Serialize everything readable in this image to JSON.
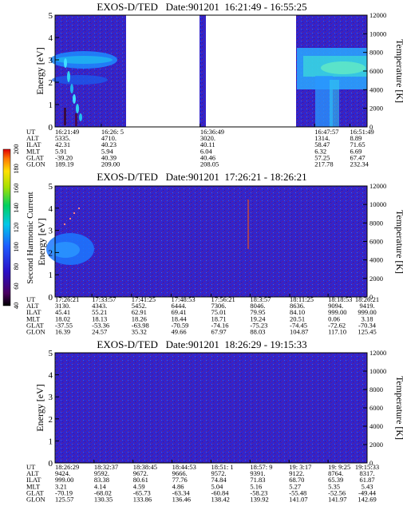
{
  "chart_data": [
    {
      "type": "heatmap",
      "title": "EXOS-D/TED   Date:901201  16:21:49 - 16:55:25",
      "ylabel": "Energy [eV]",
      "ylabel_right": "Temperature [K]",
      "ylim": [
        0,
        5
      ],
      "ylim_right": [
        0,
        12000
      ],
      "yticks": [
        "0",
        "1",
        "2",
        "3",
        "4",
        "5"
      ],
      "yticks_right": [
        "0",
        "2000",
        "4000",
        "6000",
        "8000",
        "10000",
        "12000"
      ],
      "data_gaps": [
        [
          0.228,
          0.465
        ],
        [
          0.505,
          0.832
        ]
      ],
      "row_labels": [
        "UT",
        "ALT",
        "ILAT",
        "MLT",
        "GLAT",
        "GLON"
      ],
      "columns": [
        {
          "x": 0.0,
          "values": [
            "16:21:49",
            "5335.",
            "42.31",
            "5.91",
            "-39.20",
            "189.19"
          ]
        },
        {
          "x": 0.148,
          "values": [
            "16:26: 5",
            "4710.",
            "40.23",
            "5.94",
            "40.39",
            "209.00"
          ]
        },
        {
          "x": 0.465,
          "values": [
            "16:36:49",
            "3020.",
            "40.11",
            "6.04",
            "40.46",
            "208.05"
          ]
        },
        {
          "x": 0.832,
          "values": [
            "16:47:57",
            "1314.",
            "58.47",
            "6.32",
            "57.25",
            "217.78"
          ]
        },
        {
          "x": 0.945,
          "values": [
            "16:51:49",
            "8.89",
            "71.65",
            "6.69",
            "67.47",
            "232.34"
          ]
        }
      ]
    },
    {
      "type": "heatmap",
      "title": "EXOS-D/TED   Date:901201  17:26:21 - 18:26:21",
      "ylabel": "Energy [eV]",
      "ylabel_right": "Temperature [K]",
      "ylim": [
        0,
        5
      ],
      "ylim_right": [
        0,
        12000
      ],
      "yticks": [
        "0",
        "1",
        "2",
        "3",
        "4",
        "5"
      ],
      "yticks_right": [
        "0",
        "2000",
        "4000",
        "6000",
        "8000",
        "10000",
        "12000"
      ],
      "colorbar": {
        "label": "Second Harmonic Current",
        "range": [
          40,
          200
        ],
        "ticks": [
          "40",
          "60",
          "80",
          "100",
          "120",
          "140",
          "160",
          "180",
          "200"
        ]
      },
      "row_labels": [
        "UT",
        "ALT",
        "ILAT",
        "MLT",
        "GLAT",
        "GLON"
      ],
      "columns": [
        {
          "x": 0.0,
          "values": [
            "17:26:21",
            "3130.",
            "45.41",
            "18.02",
            "-37.55",
            "16.39"
          ]
        },
        {
          "x": 0.118,
          "values": [
            "17:33:57",
            "4343.",
            "55.21",
            "18.13",
            "-53.36",
            "24.57"
          ]
        },
        {
          "x": 0.245,
          "values": [
            "17:41:25",
            "5452.",
            "62.91",
            "18.26",
            "-63.98",
            "35.32"
          ]
        },
        {
          "x": 0.372,
          "values": [
            "17:48:53",
            "6444.",
            "69.41",
            "18.44",
            "-70.59",
            "49.66"
          ]
        },
        {
          "x": 0.5,
          "values": [
            "17:56:21",
            "7306.",
            "75.01",
            "18.71",
            "-74.16",
            "67.97"
          ]
        },
        {
          "x": 0.625,
          "values": [
            "18:3:57",
            "8046.",
            "79.95",
            "19.24",
            "-75.23",
            "88.03"
          ]
        },
        {
          "x": 0.752,
          "values": [
            "18:11:25",
            "8636.",
            "84.10",
            "20.51",
            "-74.45",
            "104.87"
          ]
        },
        {
          "x": 0.875,
          "values": [
            "18:18:53",
            "9094.",
            "999.00",
            "0.06",
            "-72.62",
            "117.10"
          ]
        },
        {
          "x": 1.0,
          "values": [
            "18:26:21",
            "9419.",
            "999.00",
            "3.18",
            "-70.34",
            "125.45"
          ]
        }
      ]
    },
    {
      "type": "heatmap",
      "title": "EXOS-D/TED   Date:901201  18:26:29 - 19:15:33",
      "ylabel": "Energy [eV]",
      "ylabel_right": "Temperature [K]",
      "ylim": [
        0,
        5
      ],
      "ylim_right": [
        0,
        12000
      ],
      "yticks": [
        "0",
        "1",
        "2",
        "3",
        "4",
        "5"
      ],
      "yticks_right": [
        "0",
        "2000",
        "4000",
        "6000",
        "8000",
        "10000",
        "12000"
      ],
      "row_labels": [
        "UT",
        "ALT",
        "ILAT",
        "MLT",
        "GLAT",
        "GLON"
      ],
      "columns": [
        {
          "x": 0.0,
          "values": [
            "18:26:29",
            "9424.",
            "999.00",
            "3.21",
            "-70.19",
            "125.57"
          ]
        },
        {
          "x": 0.125,
          "values": [
            "18:32:37",
            "9592.",
            "83.38",
            "4.14",
            "-68.02",
            "130.35"
          ]
        },
        {
          "x": 0.25,
          "values": [
            "18:38:45",
            "9672.",
            "80.61",
            "4.59",
            "-65.73",
            "133.86"
          ]
        },
        {
          "x": 0.375,
          "values": [
            "18:44:53",
            "9666.",
            "77.76",
            "4.86",
            "-63.34",
            "136.46"
          ]
        },
        {
          "x": 0.5,
          "values": [
            "18:51: 1",
            "9572.",
            "74.84",
            "5.04",
            "-60.84",
            "138.42"
          ]
        },
        {
          "x": 0.625,
          "values": [
            "18:57: 9",
            "9391.",
            "71.83",
            "5.16",
            "-58.23",
            "139.92"
          ]
        },
        {
          "x": 0.75,
          "values": [
            "19: 3:17",
            "9122.",
            "68.70",
            "5.27",
            "-55.48",
            "141.07"
          ]
        },
        {
          "x": 0.875,
          "values": [
            "19: 9:25",
            "8764.",
            "65.39",
            "5.35",
            "-52.56",
            "141.97"
          ]
        },
        {
          "x": 1.0,
          "values": [
            "19:15:33",
            "8317.",
            "61.87",
            "5.43",
            "-49.44",
            "142.69"
          ]
        }
      ]
    }
  ]
}
